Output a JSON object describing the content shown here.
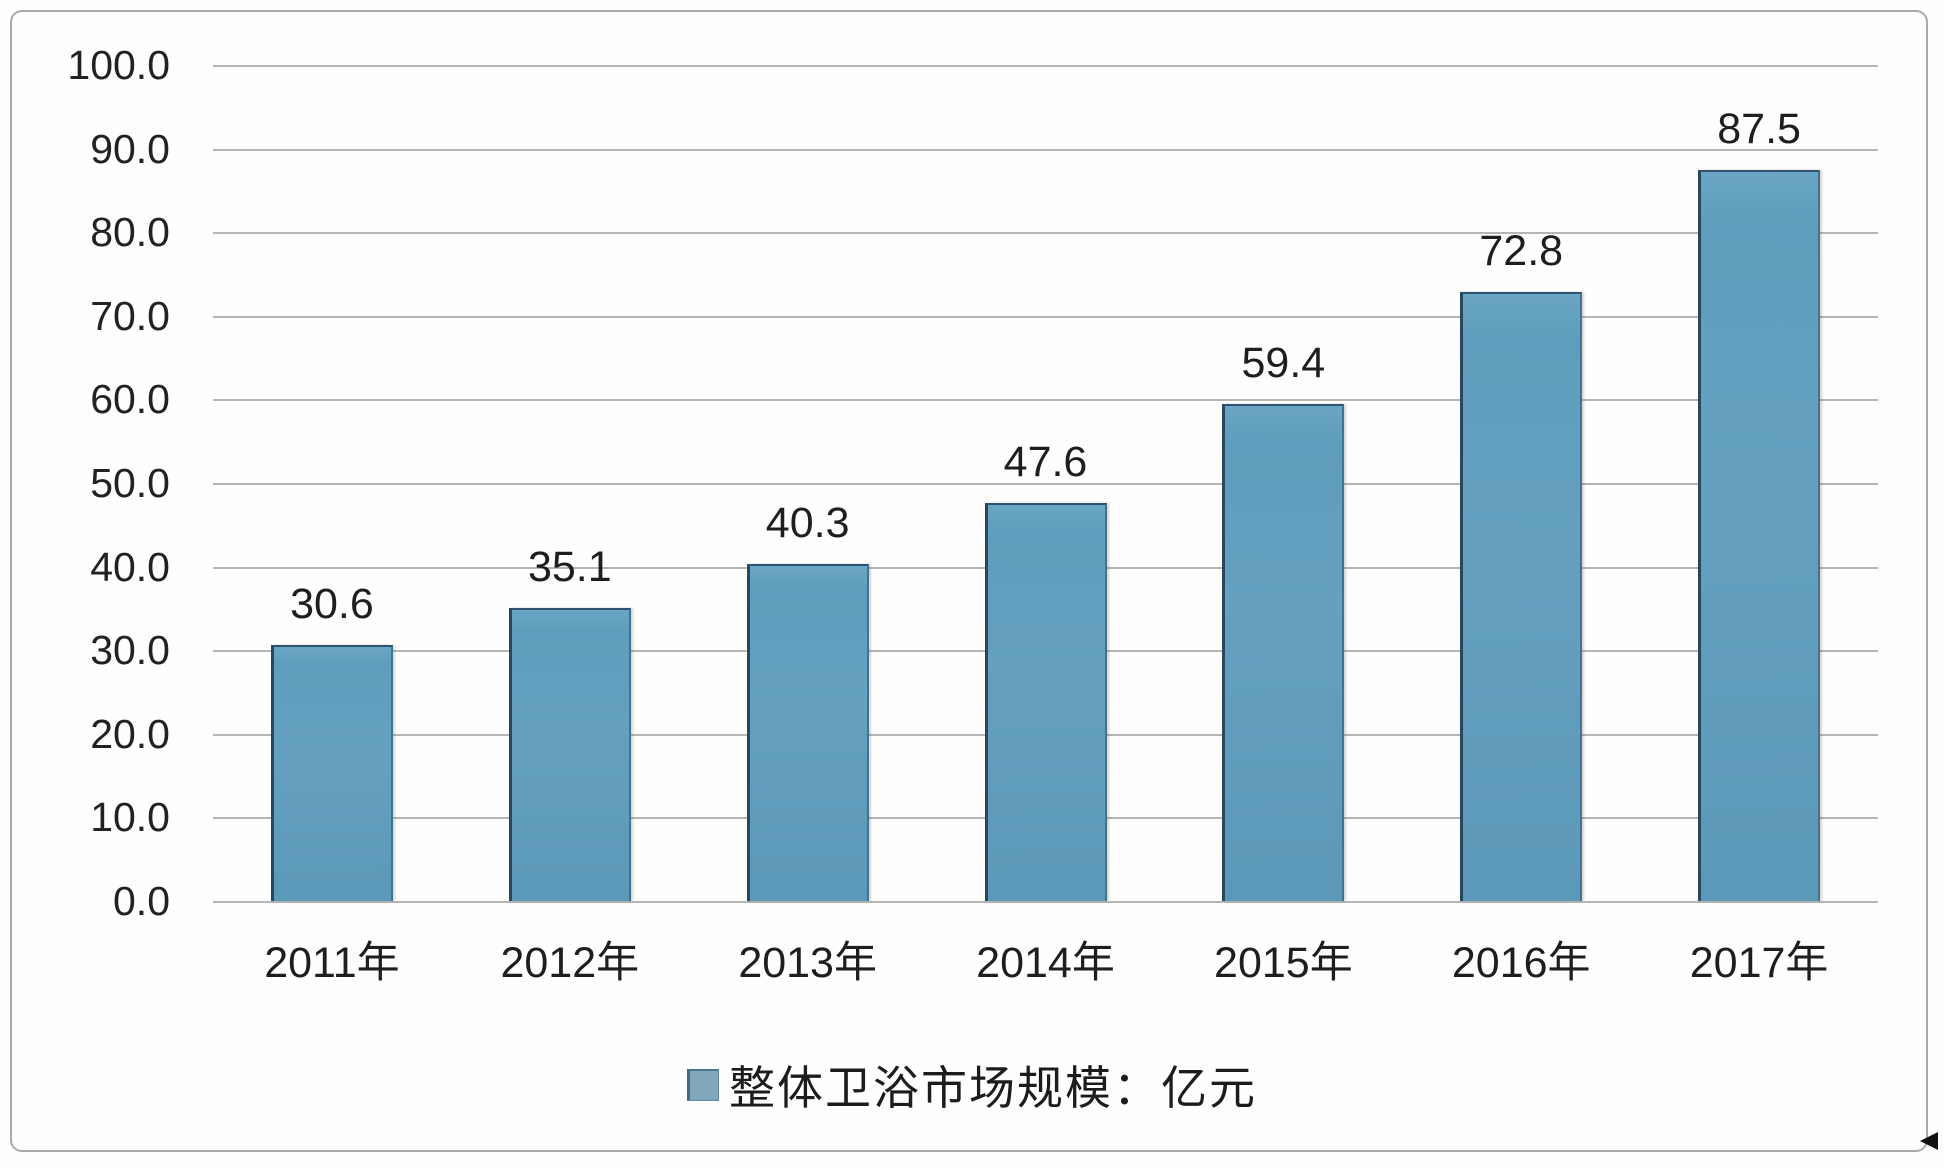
{
  "chart_data": {
    "type": "bar",
    "categories": [
      "2011年",
      "2012年",
      "2013年",
      "2014年",
      "2015年",
      "2016年",
      "2017年"
    ],
    "values": [
      30.6,
      35.1,
      40.3,
      47.6,
      59.4,
      72.8,
      87.5
    ],
    "value_labels": [
      "30.6",
      "35.1",
      "40.3",
      "47.6",
      "59.4",
      "72.8",
      "87.5"
    ],
    "title": "",
    "xlabel": "",
    "ylabel": "",
    "ylim": [
      0,
      100
    ],
    "ytick_step": 10,
    "ytick_labels_top_to_bottom": [
      "100.0",
      "90.0",
      "80.0",
      "70.0",
      "60.0",
      "50.0",
      "40.0",
      "30.0",
      "20.0",
      "10.0",
      "0.0"
    ],
    "grid": true,
    "legend": {
      "label": "整体卫浴市场规模：亿元",
      "position": "bottom-center"
    },
    "colors": {
      "bar_fill": "#5F9EBD",
      "bar_edge_dark": "#27485F",
      "gridline": "#A8A8A8",
      "text": "#1E1E1E",
      "background": "#FFFEFC",
      "frame_border": "#A9A9A9"
    }
  }
}
